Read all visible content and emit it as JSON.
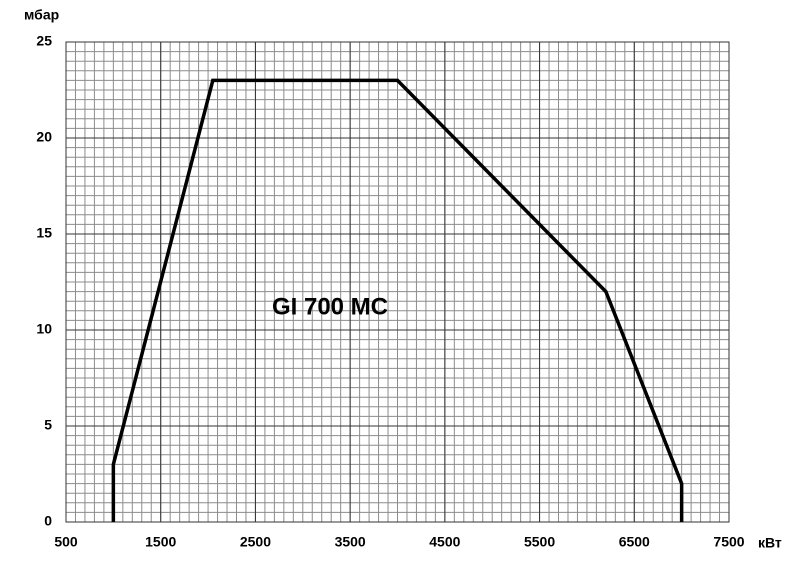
{
  "chart_data": {
    "type": "line",
    "y_label": "мбар",
    "x_label": "кВт",
    "annotation": "GI 700 MC",
    "x": [
      1000,
      1000,
      2050,
      4000,
      6200,
      7000,
      7000
    ],
    "series": [
      {
        "color": "#000000",
        "values": [
          0,
          3,
          23,
          23,
          12,
          2,
          0
        ]
      }
    ],
    "xlim": [
      500,
      7500
    ],
    "xticks": [
      500,
      1500,
      2500,
      3500,
      4500,
      5500,
      6500,
      7500
    ],
    "ylim": [
      0,
      25
    ],
    "yticks": [
      0,
      5,
      10,
      15,
      20,
      25
    ],
    "grid": {
      "major": true,
      "minor_x_step": 100,
      "minor_y_step": 0.5
    }
  }
}
